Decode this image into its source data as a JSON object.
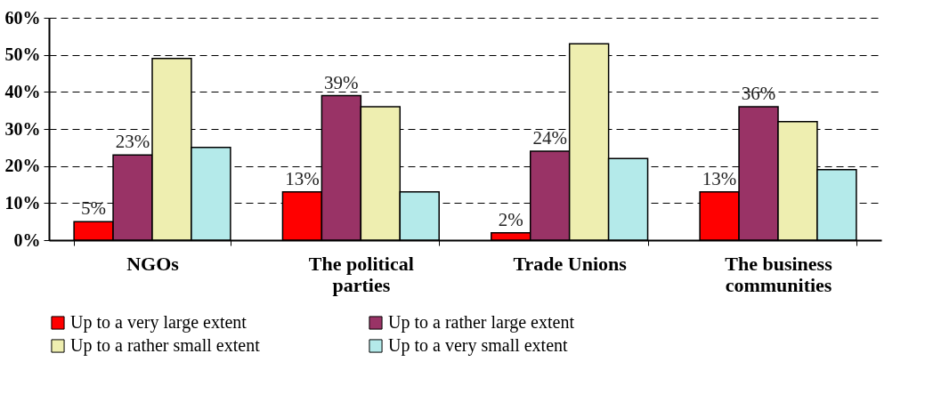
{
  "chart_data": {
    "type": "bar",
    "categories": [
      "NGOs",
      "The political parties",
      "Trade Unions",
      "The business communities"
    ],
    "series": [
      {
        "name": "Up to a very large extent",
        "color": "#ff0000",
        "values": [
          5,
          13,
          2,
          13
        ],
        "value_labels": [
          "5%",
          "13%",
          "2%",
          "13%"
        ]
      },
      {
        "name": "Up to a rather large extent",
        "color": "#993366",
        "values": [
          23,
          39,
          24,
          36
        ],
        "value_labels": [
          "23%",
          "39%",
          "24%",
          "36%"
        ]
      },
      {
        "name": "Up to a rather small extent",
        "color": "#eeeeb0",
        "values": [
          49,
          36,
          53,
          32
        ]
      },
      {
        "name": "Up to a very small extent",
        "color": "#b4eaea",
        "values": [
          25,
          13,
          22,
          19
        ]
      }
    ],
    "ylim": [
      0,
      60
    ],
    "yticks": [
      {
        "value": 0,
        "label": "0%"
      },
      {
        "value": 10,
        "label": "10%"
      },
      {
        "value": 20,
        "label": "20%"
      },
      {
        "value": 30,
        "label": "30%"
      },
      {
        "value": 40,
        "label": "40%"
      },
      {
        "value": 50,
        "label": "50%"
      },
      {
        "value": 60,
        "label": "60%"
      }
    ],
    "grid": "y",
    "legend": "bottom"
  }
}
